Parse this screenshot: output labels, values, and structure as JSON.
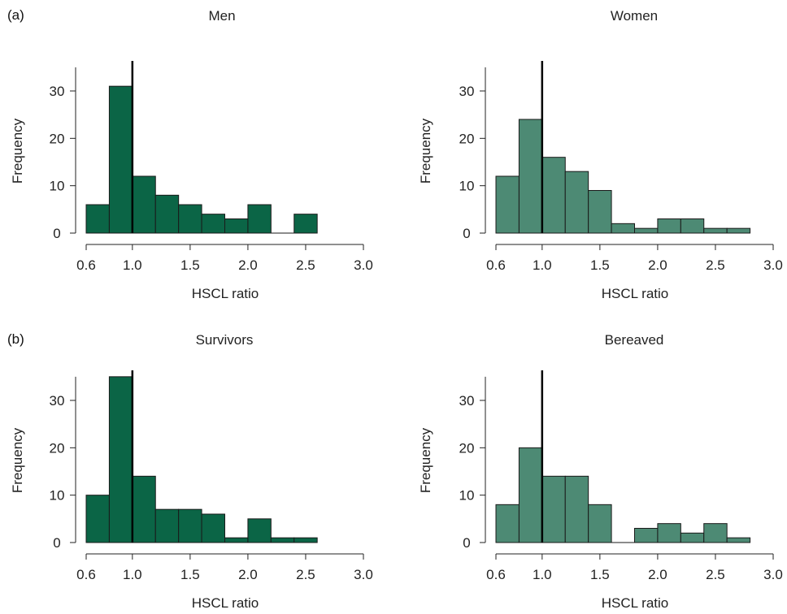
{
  "panel_labels": [
    "(a)",
    "(b)"
  ],
  "chart_data": [
    {
      "type": "bar",
      "title": "Men",
      "xlabel": "HSCL ratio",
      "ylabel": "Frequency",
      "bin_edges": [
        0.6,
        0.8,
        1.0,
        1.2,
        1.4,
        1.6,
        1.8,
        2.0,
        2.2,
        2.4,
        2.6
      ],
      "values": [
        6,
        31,
        12,
        8,
        6,
        4,
        3,
        6,
        0,
        4
      ],
      "xlim": [
        0.6,
        3.0
      ],
      "ylim": [
        0,
        35
      ],
      "xticks": [
        "0.6",
        "1.0",
        "1.5",
        "2.0",
        "2.5",
        "3.0"
      ],
      "yticks": [
        "0",
        "10",
        "20",
        "30"
      ],
      "reference_line_x": 1.0,
      "bar_color": "#0b6546"
    },
    {
      "type": "bar",
      "title": "Women",
      "xlabel": "HSCL ratio",
      "ylabel": "Frequency",
      "bin_edges": [
        0.6,
        0.8,
        1.0,
        1.2,
        1.4,
        1.6,
        1.8,
        2.0,
        2.2,
        2.4,
        2.6,
        2.8
      ],
      "values": [
        12,
        24,
        16,
        13,
        9,
        2,
        1,
        3,
        3,
        1,
        1
      ],
      "xlim": [
        0.6,
        3.0
      ],
      "ylim": [
        0,
        35
      ],
      "xticks": [
        "0.6",
        "1.0",
        "1.5",
        "2.0",
        "2.5",
        "3.0"
      ],
      "yticks": [
        "0",
        "10",
        "20",
        "30"
      ],
      "reference_line_x": 1.0,
      "bar_color": "#4d8a74"
    },
    {
      "type": "bar",
      "title": "Survivors",
      "xlabel": "HSCL ratio",
      "ylabel": "Frequency",
      "bin_edges": [
        0.6,
        0.8,
        1.0,
        1.2,
        1.4,
        1.6,
        1.8,
        2.0,
        2.2,
        2.4,
        2.6
      ],
      "values": [
        10,
        35,
        14,
        7,
        7,
        6,
        1,
        5,
        1,
        1
      ],
      "xlim": [
        0.6,
        3.0
      ],
      "ylim": [
        0,
        35
      ],
      "xticks": [
        "0.6",
        "1.0",
        "1.5",
        "2.0",
        "2.5",
        "3.0"
      ],
      "yticks": [
        "0",
        "10",
        "20",
        "30"
      ],
      "reference_line_x": 1.0,
      "bar_color": "#0b6546"
    },
    {
      "type": "bar",
      "title": "Bereaved",
      "xlabel": "HSCL ratio",
      "ylabel": "Frequency",
      "bin_edges": [
        0.6,
        0.8,
        1.0,
        1.2,
        1.4,
        1.6,
        1.8,
        2.0,
        2.2,
        2.4,
        2.6,
        2.8
      ],
      "values": [
        8,
        20,
        14,
        14,
        8,
        0,
        3,
        4,
        2,
        4,
        1
      ],
      "xlim": [
        0.6,
        3.0
      ],
      "ylim": [
        0,
        35
      ],
      "xticks": [
        "0.6",
        "1.0",
        "1.5",
        "2.0",
        "2.5",
        "3.0"
      ],
      "yticks": [
        "0",
        "10",
        "20",
        "30"
      ],
      "reference_line_x": 1.0,
      "bar_color": "#4d8a74"
    }
  ]
}
